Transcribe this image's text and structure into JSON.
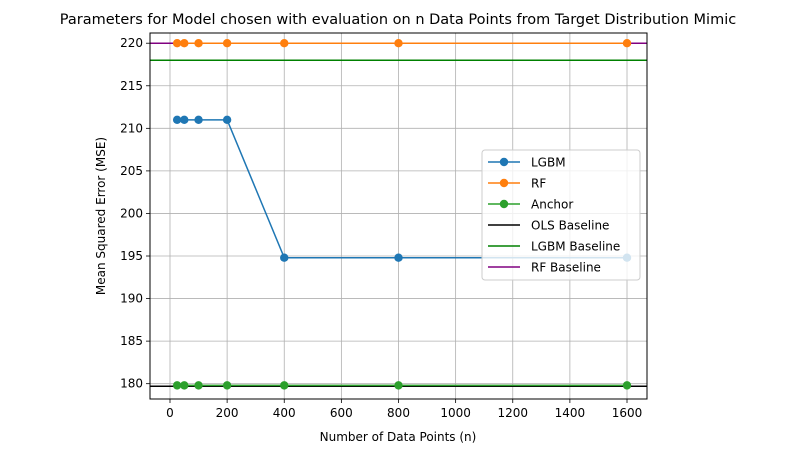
{
  "chart_data": {
    "type": "line",
    "title": "Parameters for Model chosen with evaluation on n Data Points from Target Distribution Mimic",
    "xlabel": "Number of Data Points (n)",
    "ylabel": "Mean Squared Error (MSE)",
    "xlim": [
      -70,
      1670
    ],
    "ylim": [
      178.2,
      221.2
    ],
    "xticks": [
      0,
      200,
      400,
      600,
      800,
      1000,
      1200,
      1400,
      1600
    ],
    "yticks": [
      180,
      185,
      190,
      195,
      200,
      205,
      210,
      215,
      220
    ],
    "grid": true,
    "legend_position": "center right",
    "x": [
      25,
      50,
      100,
      200,
      400,
      800,
      1600
    ],
    "series": [
      {
        "name": "LGBM",
        "color": "#1f77b4",
        "marker": "circle",
        "values": [
          211.0,
          211.0,
          211.0,
          211.0,
          194.8,
          194.8,
          194.8
        ]
      },
      {
        "name": "RF",
        "color": "#ff7f0e",
        "marker": "circle",
        "values": [
          220.0,
          220.0,
          220.0,
          220.0,
          220.0,
          220.0,
          220.0
        ]
      },
      {
        "name": "Anchor",
        "color": "#2ca02c",
        "marker": "circle",
        "values": [
          179.8,
          179.8,
          179.8,
          179.8,
          179.8,
          179.8,
          179.8
        ]
      }
    ],
    "baselines": [
      {
        "name": "OLS Baseline",
        "color": "#000000",
        "value": 179.7
      },
      {
        "name": "LGBM Baseline",
        "color": "#008000",
        "value": 218.0
      },
      {
        "name": "RF Baseline",
        "color": "#800080",
        "value": 220.0
      }
    ]
  }
}
